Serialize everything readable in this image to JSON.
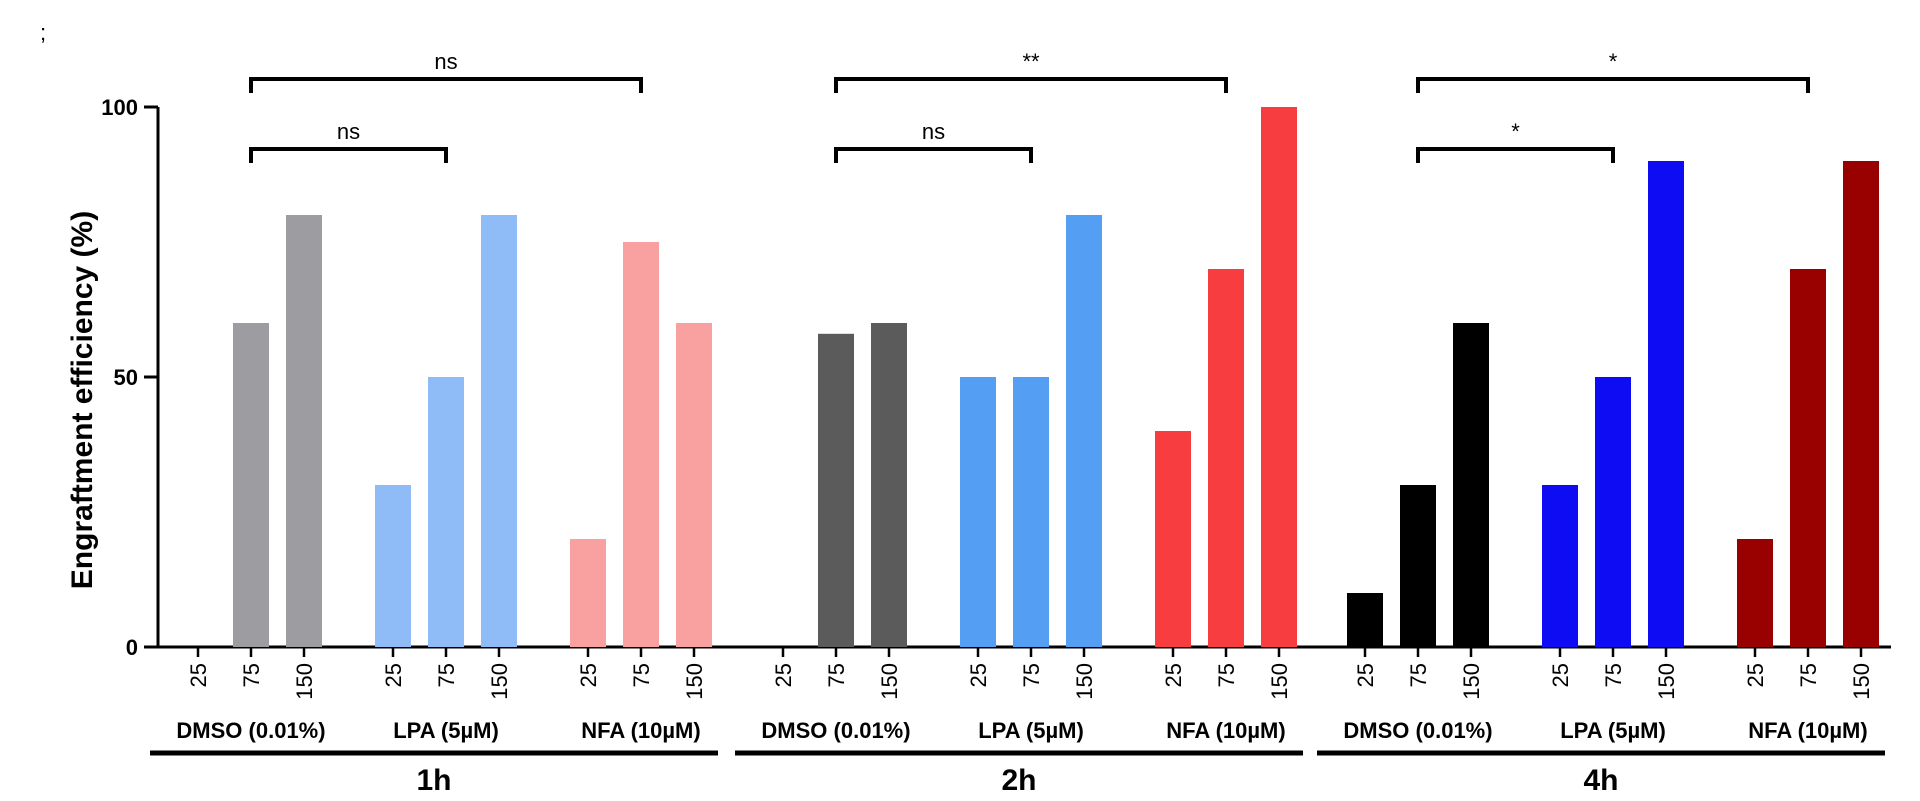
{
  "chart_data": {
    "type": "bar",
    "panel_label": ";",
    "ylabel": "Engraftment efficiency (%)",
    "ylim": [
      0,
      100
    ],
    "yticks": [
      0,
      50,
      100
    ],
    "time_groups": [
      {
        "label": "1h",
        "treatments": [
          {
            "label": "DMSO (0.01%)",
            "color": "#9d9da1",
            "doses": [
              "25",
              "75",
              "150"
            ],
            "values": [
              0,
              60,
              80
            ]
          },
          {
            "label": "LPA (5µM)",
            "color": "#8fbcf7",
            "doses": [
              "25",
              "75",
              "150"
            ],
            "values": [
              30,
              50,
              80
            ]
          },
          {
            "label": "NFA (10µM)",
            "color": "#f9a1a1",
            "doses": [
              "25",
              "75",
              "150"
            ],
            "values": [
              20,
              75,
              60
            ]
          }
        ],
        "comparisons": [
          {
            "label": "ns",
            "from": [
              0,
              1
            ],
            "to": [
              2,
              1
            ],
            "level": 2
          },
          {
            "label": "ns",
            "from": [
              0,
              1
            ],
            "to": [
              1,
              1
            ],
            "level": 1
          }
        ]
      },
      {
        "label": "2h",
        "treatments": [
          {
            "label": "DMSO (0.01%)",
            "color": "#5b5b5b",
            "doses": [
              "25",
              "75",
              "150"
            ],
            "values": [
              0,
              58,
              60
            ]
          },
          {
            "label": "LPA (5µM)",
            "color": "#549ef4",
            "doses": [
              "25",
              "75",
              "150"
            ],
            "values": [
              50,
              50,
              80
            ]
          },
          {
            "label": "NFA (10µM)",
            "color": "#f83d40",
            "doses": [
              "25",
              "75",
              "150"
            ],
            "values": [
              40,
              70,
              100
            ]
          }
        ],
        "comparisons": [
          {
            "label": "**",
            "from": [
              0,
              1
            ],
            "to": [
              2,
              1
            ],
            "level": 2
          },
          {
            "label": "ns",
            "from": [
              0,
              1
            ],
            "to": [
              1,
              1
            ],
            "level": 1
          }
        ]
      },
      {
        "label": "4h",
        "treatments": [
          {
            "label": "DMSO (0.01%)",
            "color": "#000000",
            "doses": [
              "25",
              "75",
              "150"
            ],
            "values": [
              10,
              30,
              60
            ]
          },
          {
            "label": "LPA (5µM)",
            "color": "#0e0cf2",
            "doses": [
              "25",
              "75",
              "150"
            ],
            "values": [
              30,
              50,
              90
            ]
          },
          {
            "label": "NFA (10µM)",
            "color": "#990000",
            "doses": [
              "25",
              "75",
              "150"
            ],
            "values": [
              20,
              70,
              90
            ]
          }
        ],
        "comparisons": [
          {
            "label": "*",
            "from": [
              0,
              1
            ],
            "to": [
              2,
              1
            ],
            "level": 2
          },
          {
            "label": "*",
            "from": [
              0,
              1
            ],
            "to": [
              1,
              1
            ],
            "level": 1
          }
        ]
      }
    ]
  }
}
